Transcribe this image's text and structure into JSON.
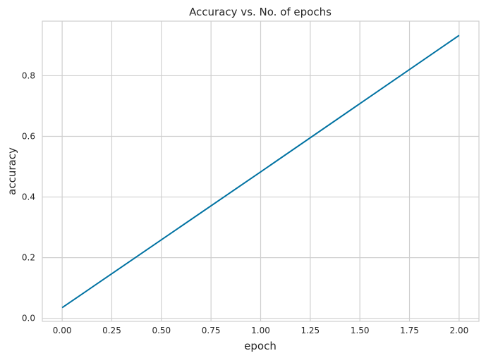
{
  "chart_data": {
    "type": "line",
    "title": "Accuracy vs. No. of epochs",
    "xlabel": "epoch",
    "ylabel": "accuracy",
    "xlim": [
      -0.1,
      2.1
    ],
    "ylim": [
      -0.01,
      0.98
    ],
    "xticks": [
      0.0,
      0.25,
      0.5,
      0.75,
      1.0,
      1.25,
      1.5,
      1.75,
      2.0
    ],
    "xtick_labels": [
      "0.00",
      "0.25",
      "0.50",
      "0.75",
      "1.00",
      "1.25",
      "1.50",
      "1.75",
      "2.00"
    ],
    "yticks": [
      0.0,
      0.2,
      0.4,
      0.6,
      0.8
    ],
    "ytick_labels": [
      "0.0",
      "0.2",
      "0.4",
      "0.6",
      "0.8"
    ],
    "grid": true,
    "series": [
      {
        "x": [
          0,
          1,
          2
        ],
        "y": [
          0.035,
          0.483,
          0.933
        ],
        "color": "#0072a2"
      }
    ],
    "grid_color": "#cfcfcf",
    "background": "#ffffff"
  }
}
